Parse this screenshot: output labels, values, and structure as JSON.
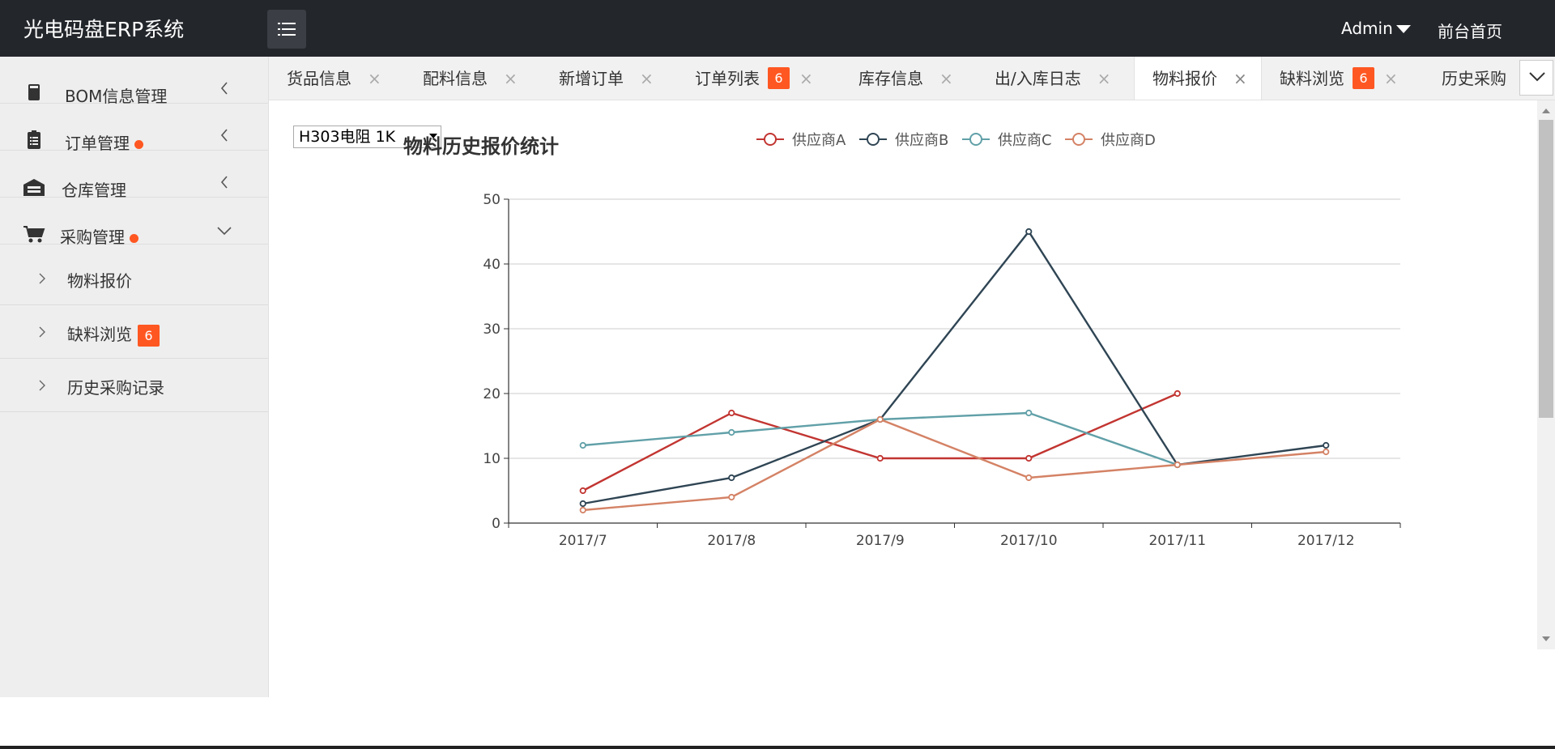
{
  "app": {
    "title": "光电码盘ERP系统",
    "user": "Admin",
    "home_link": "前台首页"
  },
  "sidebar": {
    "items": [
      {
        "label": "BOM信息管理",
        "icon": "book-icon"
      },
      {
        "label": "订单管理",
        "icon": "clipboard-icon",
        "dot": true
      },
      {
        "label": "仓库管理",
        "icon": "warehouse-icon"
      },
      {
        "label": "采购管理",
        "icon": "cart-icon",
        "dot": true,
        "expanded": true
      }
    ],
    "sub_items": [
      {
        "label": "物料报价"
      },
      {
        "label": "缺料浏览",
        "badge": "6"
      },
      {
        "label": "历史采购记录"
      }
    ]
  },
  "tabs": [
    {
      "label": "货品信息"
    },
    {
      "label": "配料信息"
    },
    {
      "label": "新增订单"
    },
    {
      "label": "订单列表",
      "badge": "6"
    },
    {
      "label": "库存信息"
    },
    {
      "label": "出/入库日志"
    },
    {
      "label": "物料报价",
      "active": true
    },
    {
      "label": "缺料浏览",
      "badge": "6"
    },
    {
      "label": "历史采购"
    }
  ],
  "close_glyph": "×",
  "material_select": {
    "value": "H303电阻 1K"
  },
  "chart_data": {
    "type": "line",
    "title": "物料历史报价统计",
    "categories": [
      "2017/7",
      "2017/8",
      "2017/9",
      "2017/10",
      "2017/11",
      "2017/12"
    ],
    "series": [
      {
        "name": "供应商A",
        "color": "#c23531",
        "values": [
          5,
          17,
          10,
          10,
          20,
          null
        ]
      },
      {
        "name": "供应商B",
        "color": "#2f4554",
        "values": [
          3,
          7,
          16,
          45,
          9,
          12
        ]
      },
      {
        "name": "供应商C",
        "color": "#61a0a8",
        "values": [
          12,
          14,
          16,
          17,
          9,
          null
        ]
      },
      {
        "name": "供应商D",
        "color": "#d48265",
        "values": [
          2,
          4,
          16,
          7,
          9,
          11
        ]
      }
    ],
    "ylim": [
      0,
      50
    ],
    "yticks": [
      0,
      10,
      20,
      30,
      40,
      50
    ],
    "grid": true,
    "legend": "top-center"
  }
}
